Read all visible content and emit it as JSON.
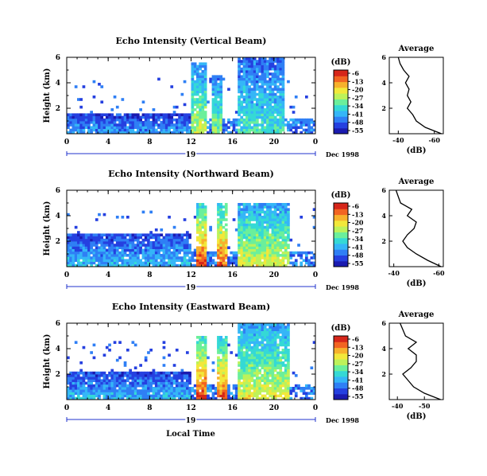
{
  "figure": {
    "x_label": "Local Time",
    "date_label": "Dec 1998",
    "day_label": "19"
  },
  "colorbar": {
    "unit": "(dB)",
    "ticks": [
      "-6",
      "-13",
      "-20",
      "-27",
      "-34",
      "-41",
      "-48",
      "-55"
    ],
    "colors": [
      "#1b1bb0",
      "#2540e0",
      "#2f7ff5",
      "#35b6f7",
      "#35d9d5",
      "#6bef9b",
      "#bdf25a",
      "#f2e83a",
      "#f7b12c",
      "#f26422",
      "#d6261a"
    ]
  },
  "chart_data": [
    {
      "type": "heatmap",
      "title": "Echo Intensity (Vertical Beam)",
      "ylabel": "Height (km)",
      "x_ticks": [
        "0",
        "4",
        "8",
        "12",
        "16",
        "20",
        "0"
      ],
      "y_ticks": [
        "2",
        "4",
        "6"
      ],
      "xlim": [
        0,
        24
      ],
      "ylim": [
        0,
        6
      ],
      "colorbar_range_db": [
        -55,
        -6
      ],
      "echo_features": [
        {
          "t0": 0,
          "t1": 12,
          "h0": 0,
          "h1": 1.5,
          "level": 0.25
        },
        {
          "t0": 12,
          "t1": 13.5,
          "h0": 0,
          "h1": 5.5,
          "level": 0.55
        },
        {
          "t0": 14,
          "t1": 15,
          "h0": 0,
          "h1": 4.5,
          "level": 0.5
        },
        {
          "t0": 16.5,
          "t1": 21,
          "h0": 0,
          "h1": 6,
          "level": 0.4
        }
      ]
    },
    {
      "type": "heatmap",
      "title": "Echo Intensity (Northward Beam)",
      "ylabel": "Height (km)",
      "x_ticks": [
        "0",
        "4",
        "8",
        "12",
        "16",
        "20",
        "0"
      ],
      "y_ticks": [
        "2",
        "4",
        "6"
      ],
      "xlim": [
        0,
        24
      ],
      "ylim": [
        0,
        6
      ],
      "colorbar_range_db": [
        -55,
        -6
      ],
      "echo_features": [
        {
          "t0": 0,
          "t1": 12,
          "h0": 0,
          "h1": 2.5,
          "level": 0.3
        },
        {
          "t0": 12.5,
          "t1": 13.5,
          "h0": 0,
          "h1": 5,
          "level": 0.85
        },
        {
          "t0": 14.5,
          "t1": 15.5,
          "h0": 0,
          "h1": 5,
          "level": 0.8
        },
        {
          "t0": 16.5,
          "t1": 21.5,
          "h0": 0,
          "h1": 5,
          "level": 0.6
        }
      ]
    },
    {
      "type": "heatmap",
      "title": "Echo Intensity (Eastward Beam)",
      "ylabel": "Height (km)",
      "x_ticks": [
        "0",
        "4",
        "8",
        "12",
        "16",
        "20",
        "0"
      ],
      "y_ticks": [
        "2",
        "4",
        "6"
      ],
      "xlim": [
        0,
        24
      ],
      "ylim": [
        0,
        6
      ],
      "colorbar_range_db": [
        -55,
        -6
      ],
      "echo_features": [
        {
          "t0": 0,
          "t1": 12,
          "h0": 0,
          "h1": 2,
          "level": 0.3
        },
        {
          "t0": 12.5,
          "t1": 13.5,
          "h0": 0,
          "h1": 5,
          "level": 0.85
        },
        {
          "t0": 14.5,
          "t1": 15.5,
          "h0": 0,
          "h1": 5,
          "level": 0.8
        },
        {
          "t0": 16.5,
          "t1": 21.5,
          "h0": 0,
          "h1": 6,
          "level": 0.6
        }
      ]
    },
    {
      "type": "line",
      "title": "Average",
      "xlabel": "(dB)",
      "x_ticks": [
        "-40",
        "-60"
      ],
      "xlim": [
        -35,
        -65
      ],
      "y_ticks": [
        "2",
        "4",
        "6"
      ],
      "ylim": [
        0,
        6
      ],
      "height_km": [
        0,
        0.5,
        1,
        1.5,
        2,
        2.5,
        3,
        3.5,
        4,
        4.5,
        5,
        5.5,
        6
      ],
      "avg_db": [
        -64,
        -55,
        -50,
        -48,
        -45,
        -47,
        -45,
        -46,
        -44,
        -46,
        -43,
        -41,
        -40
      ]
    },
    {
      "type": "line",
      "title": "Average",
      "xlabel": "(dB)",
      "x_ticks": [
        "-40",
        "-60"
      ],
      "xlim": [
        -38,
        -62
      ],
      "y_ticks": [
        "2",
        "4",
        "6"
      ],
      "ylim": [
        0,
        6
      ],
      "height_km": [
        0,
        0.5,
        1,
        1.5,
        2,
        2.5,
        3,
        3.5,
        4,
        4.5,
        5,
        5.5,
        6
      ],
      "avg_db": [
        -61,
        -55,
        -50,
        -46,
        -44,
        -46,
        -49,
        -50,
        -46,
        -48,
        -43,
        -42,
        -41
      ]
    },
    {
      "type": "line",
      "title": "Average",
      "xlabel": "(dB)",
      "x_ticks": [
        "-40",
        "-50"
      ],
      "xlim": [
        -37,
        -57
      ],
      "y_ticks": [
        "2",
        "4",
        "6"
      ],
      "ylim": [
        0,
        6
      ],
      "height_km": [
        0,
        0.5,
        1,
        1.5,
        2,
        2.5,
        3,
        3.5,
        4,
        4.5,
        5,
        5.5,
        6
      ],
      "avg_db": [
        -56,
        -50,
        -46,
        -44,
        -42,
        -45,
        -47,
        -47,
        -44,
        -47,
        -43,
        -42,
        -41
      ]
    }
  ]
}
